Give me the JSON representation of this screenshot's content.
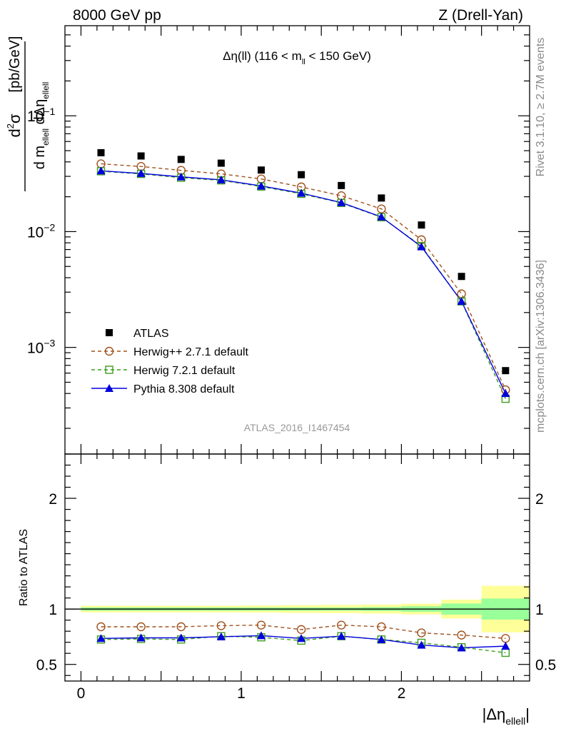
{
  "header": {
    "left": "8000 GeV pp",
    "right": "Z (Drell-Yan)"
  },
  "side_labels": {
    "rivet": "Rivet 3.1.10, ≥ 2.7M events",
    "mcplots": "mcplots.cern.ch [arXiv:1306.3436]"
  },
  "watermark": "ATLAS_2016_I1467454",
  "colors": {
    "atlas": "#000000",
    "herwigpp": "#a0521e",
    "herwig7": "#3c9e1e",
    "pythia": "#0000dd",
    "band_yellow": "#ffff99",
    "band_green": "#99ff99"
  },
  "chart_data": [
    {
      "type": "scatter",
      "panel": "main",
      "title_parts": {
        "pre": "Δη(ll) (116 < m",
        "sub": "ll",
        "post": " < 150 GeV)"
      },
      "ylabel": "d²σ / d m_ellell dΔη_ellell [pb/GeV]",
      "yscale": "log",
      "ylim": [
        0.00012,
        0.6
      ],
      "xlim": [
        -0.1,
        2.8
      ],
      "ytick_labels": [
        {
          "base": "10",
          "exp": "−1",
          "value": 0.1
        },
        {
          "base": "10",
          "exp": "−2",
          "value": 0.01
        },
        {
          "base": "10",
          "exp": "−3",
          "value": 0.001
        }
      ],
      "x": [
        0.125,
        0.375,
        0.625,
        0.875,
        1.125,
        1.375,
        1.625,
        1.875,
        2.125,
        2.375,
        2.65
      ],
      "series": [
        {
          "name": "ATLAS",
          "key": "atlas",
          "values": [
            0.048,
            0.045,
            0.042,
            0.039,
            0.034,
            0.031,
            0.025,
            0.0195,
            0.0114,
            0.0041,
            0.00063
          ]
        },
        {
          "name": "Herwig++ 2.7.1 default",
          "key": "herwigpp",
          "values": [
            0.0385,
            0.0365,
            0.0338,
            0.0315,
            0.0285,
            0.0243,
            0.0204,
            0.0157,
            0.0085,
            0.0029,
            0.00043
          ]
        },
        {
          "name": "Herwig 7.2.1 default",
          "key": "herwig7",
          "values": [
            0.0332,
            0.0315,
            0.0292,
            0.0277,
            0.0245,
            0.0212,
            0.0177,
            0.0133,
            0.0075,
            0.0025,
            0.00036
          ]
        },
        {
          "name": "Pythia 8.308 default",
          "key": "pythia",
          "values": [
            0.0335,
            0.0318,
            0.0297,
            0.028,
            0.0248,
            0.0215,
            0.0178,
            0.0134,
            0.0074,
            0.0025,
            0.0004
          ]
        }
      ],
      "legend_position": "lower-left"
    },
    {
      "type": "scatter",
      "panel": "ratio",
      "ylabel": "Ratio to ATLAS",
      "xlabel_parts": {
        "pre": "|Δη",
        "sub": "ellell",
        "post": "|"
      },
      "ylim": [
        0.35,
        2.4
      ],
      "xlim": [
        -0.1,
        2.8
      ],
      "ytick_labels": [
        "0.5",
        "1",
        "2"
      ],
      "xtick_labels": [
        "0",
        "1",
        "2"
      ],
      "x": [
        0.125,
        0.375,
        0.625,
        0.875,
        1.125,
        1.375,
        1.625,
        1.875,
        2.125,
        2.375,
        2.65
      ],
      "bin_edges": [
        0,
        0.25,
        0.5,
        0.75,
        1.0,
        1.25,
        1.5,
        1.75,
        2.0,
        2.25,
        2.5,
        2.8
      ],
      "band_green_halfwidth": [
        0.015,
        0.015,
        0.015,
        0.015,
        0.015,
        0.015,
        0.015,
        0.018,
        0.025,
        0.05,
        0.095
      ],
      "band_yellow_halfwidth": [
        0.03,
        0.03,
        0.03,
        0.03,
        0.032,
        0.035,
        0.037,
        0.04,
        0.048,
        0.085,
        0.21
      ],
      "series": [
        {
          "name": "Herwig++ 2.7.1 default",
          "key": "herwigpp",
          "values": [
            0.84,
            0.84,
            0.84,
            0.85,
            0.855,
            0.815,
            0.855,
            0.84,
            0.785,
            0.765,
            0.735
          ]
        },
        {
          "name": "Herwig 7.2.1 default",
          "key": "herwig7",
          "values": [
            0.725,
            0.73,
            0.725,
            0.755,
            0.745,
            0.715,
            0.755,
            0.725,
            0.695,
            0.655,
            0.605
          ]
        },
        {
          "name": "Pythia 8.308 default",
          "key": "pythia",
          "values": [
            0.735,
            0.74,
            0.74,
            0.75,
            0.76,
            0.735,
            0.755,
            0.725,
            0.675,
            0.65,
            0.665
          ]
        }
      ]
    }
  ]
}
